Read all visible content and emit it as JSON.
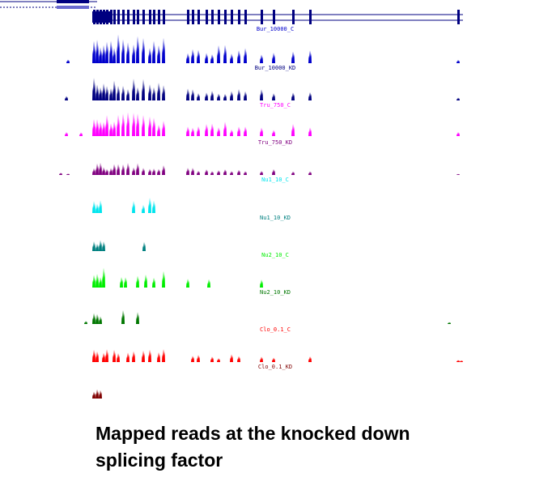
{
  "tracks": [
    {
      "label": "Bur_10000_C",
      "color": "#0000cc"
    },
    {
      "label": "Bur_10000_KD",
      "color": "#000080"
    },
    {
      "label": "Tru_750_C",
      "color": "#ff00ff"
    },
    {
      "label": "Tru_750_KD",
      "color": "#800080"
    },
    {
      "label": "Nu1_10_C",
      "color": "#00e5ee"
    },
    {
      "label": "Nu1_10_KD",
      "color": "#008080"
    },
    {
      "label": "Nu2_10_C",
      "color": "#00ee00"
    },
    {
      "label": "Nu2_10_KD",
      "color": "#007700"
    },
    {
      "label": "Clo_0.1_C",
      "color": "#ff0000"
    },
    {
      "label": "Clo_0.1_KD",
      "color": "#800000"
    }
  ],
  "caption": {
    "lines": [
      "Mapped reads at the knocked down",
      "splicing factor"
    ]
  }
}
